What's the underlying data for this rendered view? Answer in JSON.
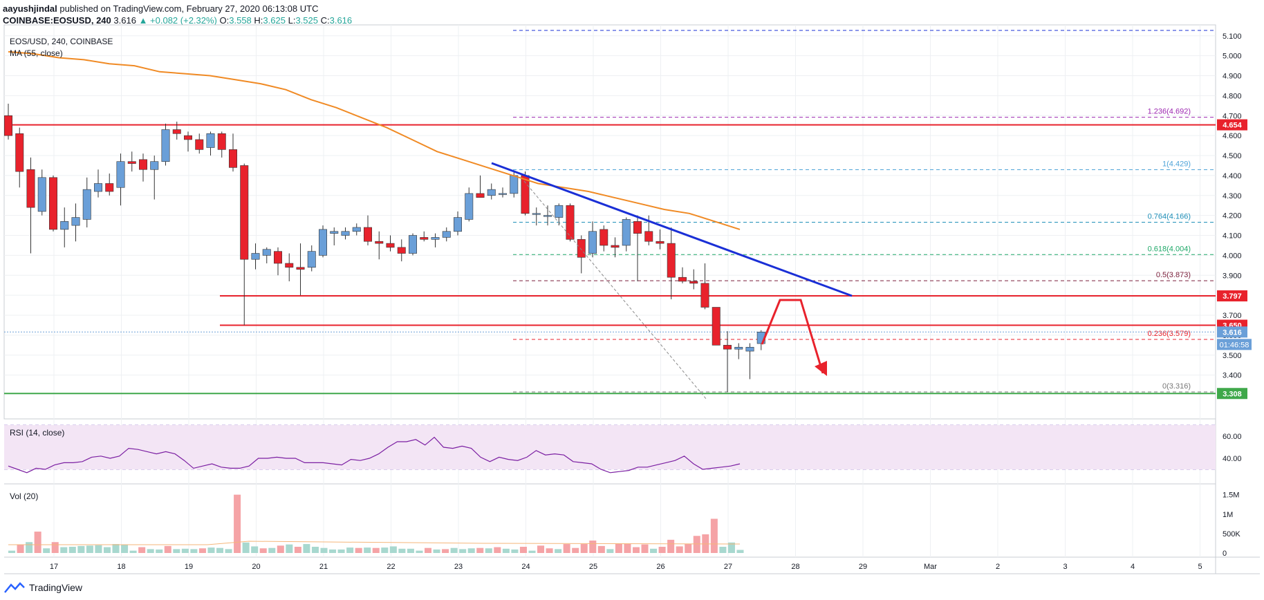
{
  "header": {
    "user": "aayushjindal",
    "published_text": " published on TradingView.com, February 27, 2020 06:13:08 UTC",
    "symbol": "COINBASE:EOSUSD, 240",
    "last": "3.616",
    "change": "▲ +0.082 (+2.32%)",
    "o_label": "O:",
    "o_val": "3.558",
    "h_label": "H:",
    "h_val": "3.625",
    "l_label": "L:",
    "l_val": "3.525",
    "c_label": "C:",
    "c_val": "3.616"
  },
  "legend": {
    "main_title": "EOS/USD, 240, COINBASE",
    "ma_label": "MA (55, close)",
    "rsi_label": "RSI (14, close)",
    "vol_label": "Vol (20)"
  },
  "footer": {
    "brand": "TradingView",
    "logo_icon": "tradingview-logo-icon"
  },
  "colors": {
    "up": "#6a9fd8",
    "down": "#e8222c",
    "ma": "#f08a24",
    "trend": "#1a2fd6",
    "hline": "#e8222c",
    "support": "#3fa84a",
    "rsi": "#7b1fa2",
    "rsi_band": "#f3e5f5"
  },
  "chart_data": [
    {
      "type": "candlestick",
      "title": "EOS/USD, 240, COINBASE",
      "ylim": [
        3.25,
        5.12
      ],
      "y_ticks": [
        "3.400",
        "3.500",
        "3.600",
        "3.700",
        "3.800",
        "3.900",
        "4.000",
        "4.100",
        "4.200",
        "4.300",
        "4.400",
        "4.500",
        "4.600",
        "4.700",
        "4.800",
        "4.900",
        "5.000",
        "5.100"
      ],
      "x_ticks": [
        "17",
        "18",
        "19",
        "20",
        "21",
        "22",
        "23",
        "24",
        "25",
        "26",
        "27",
        "28",
        "29",
        "Mar",
        "2",
        "3",
        "4",
        "5"
      ],
      "candles": [
        {
          "o": 4.7,
          "h": 4.76,
          "l": 4.58,
          "c": 4.6
        },
        {
          "o": 4.61,
          "h": 4.64,
          "l": 4.34,
          "c": 4.42
        },
        {
          "o": 4.43,
          "h": 4.49,
          "l": 4.01,
          "c": 4.24
        },
        {
          "o": 4.22,
          "h": 4.43,
          "l": 4.2,
          "c": 4.39
        },
        {
          "o": 4.39,
          "h": 4.4,
          "l": 4.12,
          "c": 4.13
        },
        {
          "o": 4.13,
          "h": 4.24,
          "l": 4.04,
          "c": 4.17
        },
        {
          "o": 4.15,
          "h": 4.26,
          "l": 4.07,
          "c": 4.19
        },
        {
          "o": 4.18,
          "h": 4.39,
          "l": 4.14,
          "c": 4.33
        },
        {
          "o": 4.32,
          "h": 4.43,
          "l": 4.29,
          "c": 4.36
        },
        {
          "o": 4.36,
          "h": 4.41,
          "l": 4.3,
          "c": 4.32
        },
        {
          "o": 4.34,
          "h": 4.51,
          "l": 4.25,
          "c": 4.47
        },
        {
          "o": 4.47,
          "h": 4.52,
          "l": 4.42,
          "c": 4.46
        },
        {
          "o": 4.48,
          "h": 4.51,
          "l": 4.37,
          "c": 4.43
        },
        {
          "o": 4.43,
          "h": 4.5,
          "l": 4.28,
          "c": 4.47
        },
        {
          "o": 4.47,
          "h": 4.66,
          "l": 4.45,
          "c": 4.63
        },
        {
          "o": 4.63,
          "h": 4.67,
          "l": 4.58,
          "c": 4.61
        },
        {
          "o": 4.6,
          "h": 4.62,
          "l": 4.52,
          "c": 4.58
        },
        {
          "o": 4.58,
          "h": 4.61,
          "l": 4.51,
          "c": 4.53
        },
        {
          "o": 4.54,
          "h": 4.62,
          "l": 4.5,
          "c": 4.61
        },
        {
          "o": 4.61,
          "h": 4.62,
          "l": 4.49,
          "c": 4.53
        },
        {
          "o": 4.53,
          "h": 4.61,
          "l": 4.42,
          "c": 4.44
        },
        {
          "o": 4.45,
          "h": 4.46,
          "l": 3.65,
          "c": 3.98
        },
        {
          "o": 3.98,
          "h": 4.06,
          "l": 3.93,
          "c": 4.01
        },
        {
          "o": 4.0,
          "h": 4.04,
          "l": 3.96,
          "c": 4.03
        },
        {
          "o": 4.02,
          "h": 4.04,
          "l": 3.9,
          "c": 3.96
        },
        {
          "o": 3.96,
          "h": 4.01,
          "l": 3.87,
          "c": 3.94
        },
        {
          "o": 3.94,
          "h": 4.06,
          "l": 3.8,
          "c": 3.93
        },
        {
          "o": 3.94,
          "h": 4.05,
          "l": 3.92,
          "c": 4.02
        },
        {
          "o": 4.0,
          "h": 4.15,
          "l": 3.99,
          "c": 4.13
        },
        {
          "o": 4.11,
          "h": 4.14,
          "l": 4.05,
          "c": 4.12
        },
        {
          "o": 4.1,
          "h": 4.14,
          "l": 4.08,
          "c": 4.12
        },
        {
          "o": 4.12,
          "h": 4.16,
          "l": 4.1,
          "c": 4.14
        },
        {
          "o": 4.14,
          "h": 4.2,
          "l": 4.05,
          "c": 4.07
        },
        {
          "o": 4.07,
          "h": 4.12,
          "l": 3.98,
          "c": 4.06
        },
        {
          "o": 4.06,
          "h": 4.1,
          "l": 4.02,
          "c": 4.04
        },
        {
          "o": 4.04,
          "h": 4.08,
          "l": 3.97,
          "c": 4.01
        },
        {
          "o": 4.01,
          "h": 4.11,
          "l": 4.0,
          "c": 4.1
        },
        {
          "o": 4.09,
          "h": 4.12,
          "l": 4.07,
          "c": 4.08
        },
        {
          "o": 4.08,
          "h": 4.11,
          "l": 4.04,
          "c": 4.09
        },
        {
          "o": 4.09,
          "h": 4.14,
          "l": 4.07,
          "c": 4.12
        },
        {
          "o": 4.12,
          "h": 4.22,
          "l": 4.1,
          "c": 4.19
        },
        {
          "o": 4.18,
          "h": 4.34,
          "l": 4.17,
          "c": 4.31
        },
        {
          "o": 4.31,
          "h": 4.4,
          "l": 4.29,
          "c": 4.29
        },
        {
          "o": 4.3,
          "h": 4.36,
          "l": 4.28,
          "c": 4.33
        },
        {
          "o": 4.31,
          "h": 4.34,
          "l": 4.29,
          "c": 4.31
        },
        {
          "o": 4.31,
          "h": 4.42,
          "l": 4.29,
          "c": 4.4
        },
        {
          "o": 4.4,
          "h": 4.42,
          "l": 4.2,
          "c": 4.21
        },
        {
          "o": 4.21,
          "h": 4.24,
          "l": 4.15,
          "c": 4.21
        },
        {
          "o": 4.2,
          "h": 4.25,
          "l": 4.15,
          "c": 4.2
        },
        {
          "o": 4.19,
          "h": 4.26,
          "l": 4.15,
          "c": 4.25
        },
        {
          "o": 4.25,
          "h": 4.26,
          "l": 4.07,
          "c": 4.08
        },
        {
          "o": 4.08,
          "h": 4.1,
          "l": 3.91,
          "c": 3.99
        },
        {
          "o": 4.01,
          "h": 4.17,
          "l": 3.99,
          "c": 4.12
        },
        {
          "o": 4.13,
          "h": 4.15,
          "l": 4.02,
          "c": 4.05
        },
        {
          "o": 4.05,
          "h": 4.09,
          "l": 3.99,
          "c": 4.04
        },
        {
          "o": 4.05,
          "h": 4.19,
          "l": 4.02,
          "c": 4.18
        },
        {
          "o": 4.17,
          "h": 4.2,
          "l": 3.87,
          "c": 4.11
        },
        {
          "o": 4.12,
          "h": 4.2,
          "l": 4.05,
          "c": 4.07
        },
        {
          "o": 4.07,
          "h": 4.13,
          "l": 4.03,
          "c": 4.06
        },
        {
          "o": 4.06,
          "h": 4.14,
          "l": 3.78,
          "c": 3.89
        },
        {
          "o": 3.89,
          "h": 3.94,
          "l": 3.86,
          "c": 3.87
        },
        {
          "o": 3.87,
          "h": 3.93,
          "l": 3.83,
          "c": 3.86
        },
        {
          "o": 3.86,
          "h": 3.96,
          "l": 3.73,
          "c": 3.74
        },
        {
          "o": 3.74,
          "h": 3.74,
          "l": 3.55,
          "c": 3.55
        },
        {
          "o": 3.55,
          "h": 3.62,
          "l": 3.316,
          "c": 3.53
        },
        {
          "o": 3.53,
          "h": 3.56,
          "l": 3.48,
          "c": 3.54
        },
        {
          "o": 3.52,
          "h": 3.56,
          "l": 3.38,
          "c": 3.54
        },
        {
          "o": 3.558,
          "h": 3.625,
          "l": 3.525,
          "c": 3.616
        }
      ],
      "ma": [
        5.02,
        5.01,
        4.99,
        4.98,
        4.96,
        4.95,
        4.92,
        4.91,
        4.9,
        4.88,
        4.86,
        4.83,
        4.78,
        4.74,
        4.69,
        4.64,
        4.58,
        4.52,
        4.48,
        4.44,
        4.4,
        4.36,
        4.34,
        4.32,
        4.29,
        4.26,
        4.23,
        4.21,
        4.17,
        4.13
      ],
      "horizontal_levels": [
        {
          "value": 4.654,
          "label": "4.654",
          "color": "#e8222c"
        },
        {
          "value": 3.797,
          "label": "3.797",
          "color": "#e8222c"
        },
        {
          "value": 3.65,
          "label": "3.650",
          "color": "#e8222c"
        },
        {
          "value": 3.616,
          "label": "3.616",
          "color": "#6a9fd8"
        },
        {
          "value": 3.308,
          "label": "3.308",
          "color": "#3fa84a"
        }
      ],
      "countdown": "01:46:58",
      "fib_levels": [
        {
          "label": "1.236(4.692)",
          "value": 4.692,
          "color": "#9c27b0"
        },
        {
          "label": "1(4.429)",
          "value": 4.429,
          "color": "#4ea3d8"
        },
        {
          "label": "0.764(4.166)",
          "value": 4.166,
          "color": "#1f8fb8"
        },
        {
          "label": "0.618(4.004)",
          "value": 4.004,
          "color": "#1ea868"
        },
        {
          "label": "0.5(3.873)",
          "value": 3.873,
          "color": "#7a1e3a"
        },
        {
          "label": "0.236(3.579)",
          "value": 3.579,
          "color": "#e8222c"
        },
        {
          "label": "0(3.316)",
          "value": 3.316,
          "color": "#777777"
        }
      ]
    },
    {
      "type": "line",
      "title": "RSI (14, close)",
      "ylim": [
        20,
        70
      ],
      "y_ticks": [
        "40.00",
        "60.00"
      ],
      "values": [
        33,
        30,
        27,
        31,
        30,
        34,
        36,
        36,
        37,
        41,
        42,
        40,
        42,
        49,
        48,
        46,
        44,
        46,
        44,
        38,
        31,
        33,
        35,
        32,
        31,
        31,
        33,
        40,
        40,
        41,
        40,
        40,
        36,
        36,
        36,
        35,
        34,
        39,
        38,
        40,
        44,
        50,
        55,
        55,
        57,
        52,
        59,
        50,
        49,
        51,
        49,
        41,
        37,
        41,
        39,
        38,
        41,
        47,
        43,
        44,
        43,
        37,
        36,
        35,
        30,
        27,
        28,
        29,
        32,
        32,
        34,
        36,
        38,
        42,
        35,
        30,
        31,
        32,
        33,
        35
      ],
      "band": [
        30,
        70
      ]
    },
    {
      "type": "bar",
      "title": "Vol (20)",
      "ylim": [
        0,
        1600000
      ],
      "y_ticks": [
        "0",
        "500K",
        "1M",
        "1.5M"
      ],
      "values": [
        60,
        220,
        280,
        550,
        120,
        280,
        150,
        160,
        180,
        190,
        200,
        150,
        230,
        210,
        60,
        150,
        100,
        90,
        180,
        100,
        110,
        100,
        120,
        140,
        130,
        100,
        1500,
        270,
        170,
        120,
        130,
        190,
        220,
        160,
        230,
        160,
        130,
        90,
        90,
        140,
        130,
        140,
        130,
        140,
        170,
        110,
        110,
        60,
        130,
        90,
        100,
        130,
        100,
        120,
        130,
        120,
        150,
        110,
        90,
        160,
        60,
        190,
        120,
        100,
        230,
        130,
        230,
        320,
        180,
        100,
        240,
        240,
        150,
        220,
        110,
        160,
        340,
        170,
        230,
        440,
        480,
        880,
        160,
        270,
        80
      ],
      "down": [
        0,
        1,
        0,
        1,
        0,
        1,
        0,
        0,
        0,
        0,
        0,
        0,
        0,
        0,
        0,
        1,
        0,
        0,
        1,
        0,
        0,
        0,
        1,
        0,
        0,
        0,
        1,
        0,
        0,
        1,
        0,
        1,
        0,
        1,
        0,
        0,
        0,
        0,
        0,
        0,
        1,
        0,
        1,
        0,
        0,
        0,
        0,
        0,
        1,
        0,
        1,
        0,
        0,
        0,
        1,
        0,
        1,
        0,
        0,
        1,
        0,
        1,
        1,
        0,
        1,
        1,
        1,
        1,
        1,
        0,
        1,
        1,
        1,
        1,
        0,
        1,
        1,
        1,
        1,
        1,
        1,
        1,
        0,
        0,
        0
      ]
    }
  ]
}
